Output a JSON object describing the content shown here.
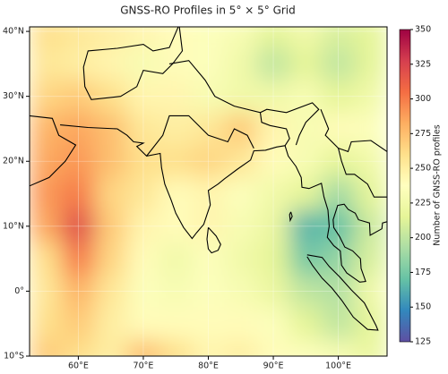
{
  "chart_data": {
    "type": "heatmap",
    "title": "GNSS-RO Profiles in 5° × 5° Grid",
    "lons": [
      55,
      60,
      65,
      70,
      75,
      80,
      85,
      90,
      95,
      100,
      105
    ],
    "lats": [
      40,
      35,
      30,
      25,
      20,
      15,
      10,
      5,
      0,
      -5,
      -10
    ],
    "values": [
      [
        260,
        255,
        250,
        245,
        240,
        235,
        230,
        215,
        225,
        210,
        215
      ],
      [
        255,
        250,
        245,
        230,
        240,
        235,
        225,
        200,
        215,
        200,
        215
      ],
      [
        265,
        270,
        260,
        245,
        245,
        230,
        225,
        225,
        230,
        215,
        225
      ],
      [
        280,
        285,
        275,
        255,
        250,
        255,
        270,
        245,
        230,
        240,
        235
      ],
      [
        285,
        290,
        275,
        260,
        260,
        265,
        255,
        240,
        230,
        215,
        225
      ],
      [
        290,
        300,
        265,
        255,
        240,
        245,
        235,
        225,
        215,
        190,
        215
      ],
      [
        285,
        320,
        270,
        245,
        240,
        245,
        230,
        220,
        165,
        170,
        205
      ],
      [
        260,
        300,
        265,
        240,
        225,
        235,
        225,
        215,
        175,
        185,
        210
      ],
      [
        255,
        280,
        255,
        235,
        230,
        235,
        230,
        220,
        200,
        195,
        225
      ],
      [
        260,
        270,
        250,
        240,
        240,
        240,
        240,
        235,
        215,
        200,
        215
      ],
      [
        270,
        260,
        250,
        275,
        260,
        245,
        250,
        240,
        235,
        230,
        220
      ]
    ],
    "xlim": [
      52.5,
      107.5
    ],
    "ylim": [
      -10,
      40.7
    ],
    "xticks": [
      {
        "value": 60,
        "label": "60°E"
      },
      {
        "value": 70,
        "label": "70°E"
      },
      {
        "value": 80,
        "label": "80°E"
      },
      {
        "value": 90,
        "label": "90°E"
      },
      {
        "value": 100,
        "label": "100°E"
      }
    ],
    "yticks": [
      {
        "value": -10,
        "label": "10°S"
      },
      {
        "value": 0,
        "label": "0°"
      },
      {
        "value": 10,
        "label": "10°N"
      },
      {
        "value": 20,
        "label": "20°N"
      },
      {
        "value": 30,
        "label": "30°N"
      },
      {
        "value": 40,
        "label": "40°N"
      }
    ],
    "colorbar_label": "Number of GNSS-RO profiles",
    "clim": [
      125,
      350
    ],
    "cticks": [
      125,
      150,
      175,
      200,
      225,
      250,
      275,
      300,
      325,
      350
    ],
    "colormap": "Spectral_r",
    "grid": true
  }
}
